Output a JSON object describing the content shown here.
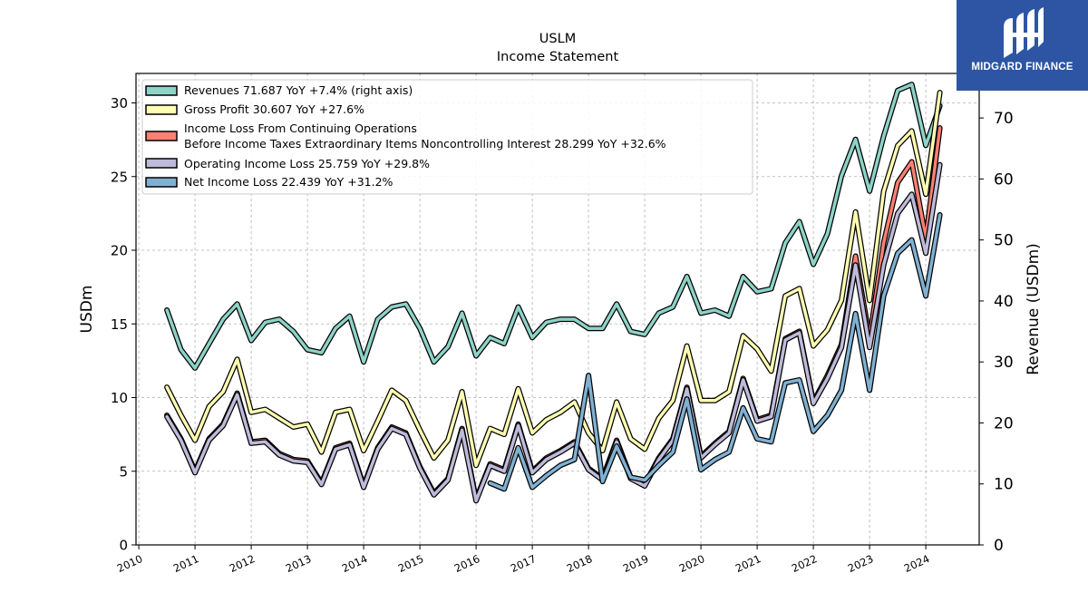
{
  "brand": {
    "name": "MIDGARD FINANCE",
    "logo_icon": "midgard-logo-icon",
    "color": "#2d55a4"
  },
  "chart_data": {
    "type": "line",
    "title": "USLM",
    "subtitle": "Income Statement",
    "ylabel": "USDm",
    "y2label": "Revenue (USDm)",
    "ylim": [
      0,
      32
    ],
    "y2lim": [
      0,
      77.3
    ],
    "xlim": [
      2009.95,
      2024.95
    ],
    "yticks": [
      0,
      5,
      10,
      15,
      20,
      25,
      30
    ],
    "y2ticks": [
      0,
      10,
      20,
      30,
      40,
      50,
      60,
      70
    ],
    "xticks": [
      "2010",
      "2011",
      "2012",
      "2013",
      "2014",
      "2015",
      "2016",
      "2017",
      "2018",
      "2019",
      "2020",
      "2021",
      "2022",
      "2023",
      "2024"
    ],
    "grid": true,
    "legend_position": "top-left",
    "x": [
      2010.5,
      2010.75,
      2011.0,
      2011.25,
      2011.5,
      2011.75,
      2012.0,
      2012.25,
      2012.5,
      2012.75,
      2013.0,
      2013.25,
      2013.5,
      2013.75,
      2014.0,
      2014.25,
      2014.5,
      2014.75,
      2015.0,
      2015.25,
      2015.5,
      2015.75,
      2016.0,
      2016.25,
      2016.5,
      2016.75,
      2017.0,
      2017.25,
      2017.5,
      2017.75,
      2018.0,
      2018.25,
      2018.5,
      2018.75,
      2019.0,
      2019.25,
      2019.5,
      2019.75,
      2020.0,
      2020.25,
      2020.5,
      2020.75,
      2021.0,
      2021.25,
      2021.5,
      2021.75,
      2022.0,
      2022.25,
      2022.5,
      2022.75,
      2023.0,
      2023.25,
      2023.5,
      2023.75,
      2024.0,
      2024.25
    ],
    "series": [
      {
        "name": "Revenues  71.687 YoY +7.4% (right axis)",
        "color": "#8dd3c7",
        "axis": "right",
        "values": [
          38.5,
          32,
          29,
          33,
          37,
          39.5,
          33.5,
          36.5,
          37,
          35,
          32,
          31.5,
          35.5,
          37.5,
          30,
          37,
          39,
          39.5,
          35.5,
          30,
          32.5,
          38,
          31,
          34,
          33,
          39,
          34,
          36.5,
          37,
          37,
          35.5,
          35.5,
          39.5,
          35,
          34.5,
          38,
          39,
          44,
          38,
          38.5,
          37.5,
          44,
          41.5,
          42,
          49.5,
          53,
          46,
          51,
          60.5,
          66.5,
          58,
          67,
          74.5,
          75.5,
          65.5,
          72
        ]
      },
      {
        "name": "Gross Profit  30.607 YoY +27.6%",
        "color": "#ffffb3",
        "axis": "left",
        "values": [
          10.7,
          8.8,
          7.1,
          9.4,
          10.4,
          12.6,
          9.0,
          9.2,
          8.6,
          8.0,
          8.2,
          6.3,
          9.0,
          9.2,
          6.4,
          8.4,
          10.5,
          9.8,
          7.8,
          5.9,
          7.1,
          10.4,
          5.4,
          7.9,
          7.5,
          10.6,
          7.6,
          8.5,
          9.0,
          9.7,
          7.6,
          6.4,
          9.7,
          7.2,
          6.5,
          8.6,
          9.8,
          13.5,
          9.8,
          9.8,
          10.4,
          14.2,
          13.3,
          11.8,
          16.9,
          17.4,
          13.5,
          14.6,
          16.6,
          22.6,
          16.6,
          24.0,
          27.1,
          28.1,
          23.8,
          30.7
        ]
      },
      {
        "name": "Income Loss From Continuing Operations\nBefore Income Taxes Extraordinary Items Noncontrolling Interest  28.299 YoY +32.6%",
        "color": "#fb8072",
        "axis": "left",
        "values": [
          8.8,
          7.2,
          5.0,
          7.2,
          8.2,
          10.3,
          7.0,
          7.1,
          6.2,
          5.8,
          5.7,
          4.2,
          6.6,
          6.9,
          4.0,
          6.6,
          8.0,
          7.6,
          5.3,
          3.5,
          4.5,
          7.9,
          3.1,
          5.5,
          5.1,
          8.2,
          5.0,
          5.9,
          6.4,
          7.0,
          5.2,
          4.5,
          7.1,
          4.6,
          4.1,
          5.9,
          7.2,
          10.7,
          6.0,
          6.9,
          7.7,
          11.3,
          8.5,
          8.8,
          14.0,
          14.5,
          9.7,
          11.5,
          13.6,
          19.6,
          14.0,
          20.5,
          24.6,
          26.0,
          20.8,
          28.3
        ]
      },
      {
        "name": "Operating Income Loss  25.759 YoY +29.8%",
        "color": "#bebada",
        "axis": "left",
        "values": [
          8.7,
          7.1,
          4.9,
          7.1,
          8.1,
          10.2,
          6.9,
          7.0,
          6.1,
          5.7,
          5.6,
          4.1,
          6.5,
          6.8,
          3.9,
          6.5,
          7.9,
          7.5,
          5.2,
          3.4,
          4.4,
          7.8,
          3.0,
          5.4,
          5.0,
          8.1,
          4.9,
          5.8,
          6.3,
          6.9,
          5.1,
          4.4,
          7.0,
          4.5,
          4.0,
          5.8,
          7.1,
          10.6,
          5.9,
          6.8,
          7.6,
          11.2,
          8.4,
          8.7,
          13.9,
          14.4,
          9.6,
          11.3,
          13.4,
          19.0,
          13.4,
          19.0,
          22.5,
          23.8,
          19.8,
          25.8
        ]
      },
      {
        "name": "Net Income Loss  22.439 YoY +31.2%",
        "color": "#80b1d3",
        "axis": "left",
        "values": [
          null,
          null,
          null,
          null,
          null,
          null,
          null,
          null,
          null,
          null,
          null,
          null,
          null,
          null,
          null,
          null,
          null,
          null,
          null,
          null,
          null,
          null,
          null,
          4.2,
          3.8,
          6.6,
          3.9,
          4.7,
          5.4,
          5.8,
          11.5,
          4.3,
          6.7,
          4.6,
          4.4,
          5.4,
          6.3,
          9.9,
          5.1,
          5.8,
          6.3,
          9.3,
          7.2,
          7.0,
          11.0,
          11.2,
          7.7,
          8.8,
          10.5,
          15.7,
          10.5,
          16.9,
          19.8,
          20.7,
          16.9,
          22.4
        ]
      }
    ]
  }
}
